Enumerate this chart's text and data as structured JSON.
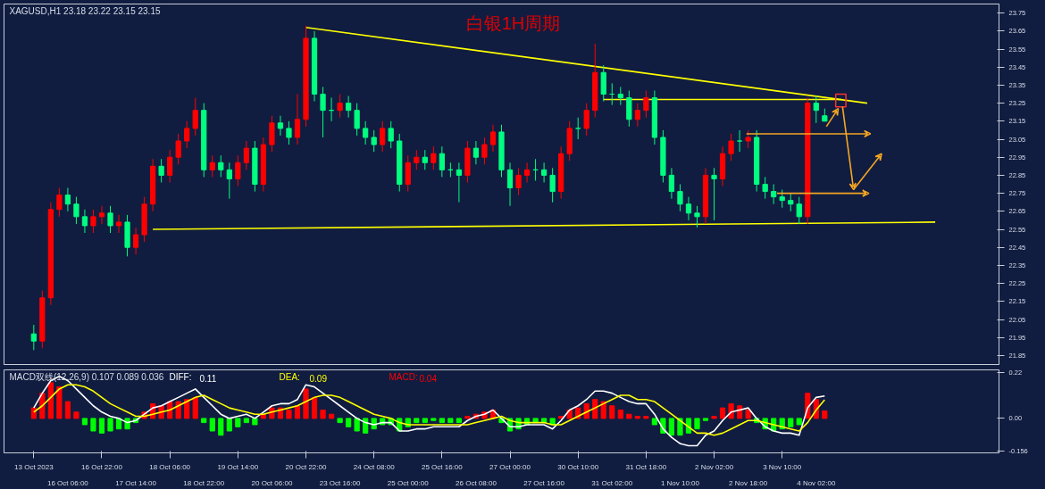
{
  "chart_data": [
    {
      "type": "candlestick",
      "title": "白银1H周期",
      "subtitle": "XAGUSD,H1  23.18 23.22 23.15 23.15",
      "categories": [
        null,
        null,
        null,
        null,
        null,
        null,
        null,
        null,
        null,
        null,
        null,
        null,
        null,
        null,
        null,
        null,
        null,
        null,
        null,
        null,
        null,
        null,
        null,
        null,
        null,
        null,
        null,
        null,
        null,
        null,
        null,
        null,
        null,
        null,
        null,
        null,
        null,
        null,
        null,
        null,
        null,
        null,
        null,
        null,
        null,
        null,
        null,
        null,
        null,
        null,
        null,
        null,
        null,
        null,
        null,
        null,
        null,
        null,
        null,
        null,
        null,
        null,
        null,
        null,
        null,
        null,
        null,
        null,
        null,
        null,
        null,
        null,
        null,
        null,
        null,
        null,
        null,
        null,
        null,
        null,
        null,
        null,
        null,
        null,
        null,
        null,
        null,
        null,
        null,
        null,
        null,
        null,
        null,
        null,
        null,
        null,
        null,
        null,
        null,
        null,
        null,
        null,
        null,
        null,
        null,
        null,
        null,
        null,
        null,
        null,
        null,
        null,
        null,
        null
      ],
      "ohlc": [
        [
          21.97,
          22.02,
          21.88,
          21.93
        ],
        [
          21.93,
          22.21,
          21.89,
          22.17
        ],
        [
          22.17,
          22.7,
          22.13,
          22.66
        ],
        [
          22.66,
          22.78,
          22.62,
          22.74
        ],
        [
          22.74,
          22.78,
          22.65,
          22.69
        ],
        [
          22.69,
          22.73,
          22.58,
          22.62
        ],
        [
          22.62,
          22.66,
          22.53,
          22.57
        ],
        [
          22.57,
          22.66,
          22.53,
          22.62
        ],
        [
          22.62,
          22.68,
          22.58,
          22.64
        ],
        [
          22.64,
          22.68,
          22.53,
          22.57
        ],
        [
          22.57,
          22.63,
          22.53,
          22.59
        ],
        [
          22.59,
          22.63,
          22.4,
          22.45
        ],
        [
          22.45,
          22.56,
          22.41,
          22.52
        ],
        [
          22.52,
          22.73,
          22.48,
          22.69
        ],
        [
          22.69,
          22.94,
          22.65,
          22.9
        ],
        [
          22.9,
          22.94,
          22.81,
          22.85
        ],
        [
          22.85,
          22.99,
          22.81,
          22.95
        ],
        [
          22.95,
          23.08,
          22.91,
          23.04
        ],
        [
          23.04,
          23.15,
          23.0,
          23.11
        ],
        [
          23.11,
          23.28,
          23.07,
          23.21
        ],
        [
          23.21,
          23.25,
          22.84,
          22.88
        ],
        [
          22.88,
          22.96,
          22.84,
          22.92
        ],
        [
          22.92,
          22.96,
          22.84,
          22.88
        ],
        [
          22.88,
          22.92,
          22.72,
          22.83
        ],
        [
          22.83,
          22.96,
          22.79,
          22.92
        ],
        [
          22.92,
          23.04,
          22.88,
          23.0
        ],
        [
          23.0,
          23.04,
          22.76,
          22.8
        ],
        [
          22.8,
          23.06,
          22.76,
          23.02
        ],
        [
          23.02,
          23.18,
          22.98,
          23.14
        ],
        [
          23.14,
          23.18,
          23.07,
          23.11
        ],
        [
          23.11,
          23.15,
          23.02,
          23.06
        ],
        [
          23.06,
          23.3,
          23.02,
          23.16
        ],
        [
          23.16,
          23.68,
          23.12,
          23.61
        ],
        [
          23.61,
          23.65,
          23.26,
          23.3
        ],
        [
          23.3,
          23.34,
          23.06,
          23.21
        ],
        [
          23.21,
          23.28,
          23.15,
          23.21
        ],
        [
          23.21,
          23.3,
          23.17,
          23.25
        ],
        [
          23.25,
          23.29,
          23.17,
          23.21
        ],
        [
          23.21,
          23.25,
          23.07,
          23.11
        ],
        [
          23.11,
          23.15,
          23.02,
          23.06
        ],
        [
          23.06,
          23.1,
          22.98,
          23.02
        ],
        [
          23.02,
          23.15,
          22.98,
          23.11
        ],
        [
          23.11,
          23.15,
          23.0,
          23.04
        ],
        [
          23.04,
          23.08,
          22.76,
          22.8
        ],
        [
          22.8,
          22.96,
          22.76,
          22.92
        ],
        [
          22.92,
          22.99,
          22.88,
          22.95
        ],
        [
          22.95,
          22.99,
          22.88,
          22.92
        ],
        [
          22.92,
          23.01,
          22.88,
          22.97
        ],
        [
          22.97,
          23.01,
          22.84,
          22.88
        ],
        [
          22.88,
          22.92,
          22.84,
          22.88
        ],
        [
          22.88,
          22.92,
          22.7,
          22.85
        ],
        [
          22.85,
          23.04,
          22.81,
          23.0
        ],
        [
          23.0,
          23.04,
          22.91,
          22.95
        ],
        [
          22.95,
          23.06,
          22.91,
          23.02
        ],
        [
          23.02,
          23.13,
          22.98,
          23.09
        ],
        [
          23.09,
          23.13,
          22.84,
          22.88
        ],
        [
          22.88,
          22.92,
          22.68,
          22.78
        ],
        [
          22.78,
          22.89,
          22.74,
          22.85
        ],
        [
          22.85,
          22.92,
          22.81,
          22.88
        ],
        [
          22.88,
          22.94,
          22.82,
          22.88
        ],
        [
          22.88,
          22.92,
          22.81,
          22.85
        ],
        [
          22.85,
          22.89,
          22.7,
          22.76
        ],
        [
          22.76,
          23.01,
          22.72,
          22.97
        ],
        [
          22.97,
          23.15,
          22.93,
          23.11
        ],
        [
          23.11,
          23.17,
          23.05,
          23.11
        ],
        [
          23.11,
          23.25,
          23.07,
          23.21
        ],
        [
          23.21,
          23.58,
          23.17,
          23.42
        ],
        [
          23.42,
          23.46,
          23.26,
          23.3
        ],
        [
          23.3,
          23.36,
          23.24,
          23.3
        ],
        [
          23.3,
          23.34,
          23.24,
          23.28
        ],
        [
          23.28,
          23.32,
          23.12,
          23.16
        ],
        [
          23.16,
          23.25,
          23.12,
          23.21
        ],
        [
          23.21,
          23.32,
          23.17,
          23.28
        ],
        [
          23.28,
          23.32,
          23.02,
          23.06
        ],
        [
          23.06,
          23.1,
          22.81,
          22.85
        ],
        [
          22.85,
          22.89,
          22.72,
          22.76
        ],
        [
          22.76,
          22.8,
          22.65,
          22.69
        ],
        [
          22.69,
          22.73,
          22.6,
          22.64
        ],
        [
          22.64,
          22.68,
          22.56,
          22.62
        ],
        [
          22.62,
          22.89,
          22.58,
          22.85
        ],
        [
          22.85,
          22.89,
          22.6,
          22.83
        ],
        [
          22.83,
          23.01,
          22.79,
          22.97
        ],
        [
          22.97,
          23.08,
          22.93,
          23.04
        ],
        [
          23.04,
          23.1,
          22.98,
          23.04
        ],
        [
          23.04,
          23.1,
          23.0,
          23.06
        ],
        [
          23.06,
          23.1,
          22.76,
          22.8
        ],
        [
          22.8,
          22.84,
          22.72,
          22.76
        ],
        [
          22.76,
          22.8,
          22.69,
          22.73
        ],
        [
          22.73,
          22.77,
          22.67,
          22.71
        ],
        [
          22.71,
          22.75,
          22.65,
          22.69
        ],
        [
          22.69,
          22.73,
          22.58,
          22.62
        ],
        [
          22.62,
          23.28,
          22.58,
          23.25
        ],
        [
          23.25,
          23.29,
          23.14,
          23.21
        ],
        [
          23.18,
          23.22,
          23.15,
          23.15
        ],
        null,
        null,
        null,
        null,
        null,
        null,
        null,
        null,
        null,
        null,
        null,
        null,
        null,
        null,
        null,
        null,
        null,
        null,
        null,
        null
      ],
      "colors": [
        "#00ff80",
        "#ff0000",
        "#ff0000",
        "#ff0000",
        "#00ff80",
        "#00ff80",
        "#00ff80",
        "#ff0000",
        "#ff0000",
        "#00ff80",
        "#ff0000",
        "#00ff80",
        "#ff0000",
        "#ff0000",
        "#ff0000",
        "#00ff80",
        "#ff0000",
        "#ff0000",
        "#ff0000",
        "#ff0000",
        "#00ff80",
        "#ff0000",
        "#00ff80",
        "#00ff80",
        "#ff0000",
        "#ff0000",
        "#00ff80",
        "#ff0000",
        "#ff0000",
        "#00ff80",
        "#00ff80",
        "#ff0000",
        "#ff0000",
        "#00ff80",
        "#00ff80",
        "#00ff80",
        "#ff0000",
        "#00ff80",
        "#00ff80",
        "#00ff80",
        "#00ff80",
        "#ff0000",
        "#00ff80",
        "#00ff80",
        "#ff0000",
        "#ff0000",
        "#00ff80",
        "#ff0000",
        "#00ff80",
        "#00ff80",
        "#00ff80",
        "#ff0000",
        "#00ff80",
        "#ff0000",
        "#ff0000",
        "#00ff80",
        "#00ff80",
        "#ff0000",
        "#ff0000",
        "#00ff80",
        "#00ff80",
        "#00ff80",
        "#ff0000",
        "#ff0000",
        "#00ff80",
        "#ff0000",
        "#ff0000",
        "#00ff80",
        "#00ff80",
        "#00ff80",
        "#00ff80",
        "#ff0000",
        "#ff0000",
        "#00ff80",
        "#00ff80",
        "#00ff80",
        "#00ff80",
        "#00ff80",
        "#00ff80",
        "#ff0000",
        "#00ff80",
        "#ff0000",
        "#ff0000",
        "#00ff80",
        "#ff0000",
        "#00ff80",
        "#00ff80",
        "#00ff80",
        "#00ff80",
        "#00ff80",
        "#00ff80",
        "#ff0000",
        "#00ff80",
        "#00ff80",
        null,
        null,
        null,
        null,
        null,
        null,
        null,
        null,
        null,
        null,
        null,
        null,
        null,
        null,
        null,
        null,
        null,
        null,
        null,
        null
      ],
      "series": [
        {
          "type": "line",
          "color": "#ffff00",
          "values": [
            null,
            null,
            null,
            null,
            null,
            null,
            null,
            null,
            null,
            null,
            null,
            null,
            null,
            null,
            null,
            null,
            null,
            null,
            null,
            null,
            null,
            null,
            null,
            null,
            null,
            null,
            null,
            null,
            null,
            null,
            null,
            null,
            23.67,
            null,
            null,
            null,
            null,
            null,
            null,
            null,
            null,
            null,
            null,
            null,
            null,
            null,
            null,
            null,
            null,
            null,
            null,
            null,
            null,
            null,
            null,
            null,
            null,
            null,
            null,
            null,
            null,
            null,
            null,
            null,
            null,
            null,
            null,
            null,
            null,
            null,
            null,
            null,
            null,
            null,
            null,
            null,
            null,
            null,
            null,
            null,
            null,
            null,
            null,
            null,
            null,
            null,
            null,
            null,
            null,
            null,
            null,
            null,
            null,
            null,
            null,
            null,
            null,
            null,
            23.25,
            null,
            null,
            null,
            null,
            null,
            null,
            null,
            null,
            null,
            null,
            null,
            null,
            null,
            null,
            null
          ]
        },
        {
          "type": "line",
          "color": "#ffff00",
          "values": [
            null,
            null,
            null,
            null,
            null,
            null,
            null,
            null,
            null,
            null,
            null,
            null,
            null,
            null,
            22.55,
            null,
            null,
            null,
            null,
            null,
            null,
            null,
            null,
            null,
            null,
            null,
            null,
            null,
            null,
            null,
            null,
            null,
            null,
            null,
            null,
            null,
            null,
            null,
            null,
            null,
            null,
            null,
            null,
            null,
            null,
            null,
            null,
            null,
            null,
            null,
            null,
            null,
            null,
            null,
            null,
            null,
            null,
            null,
            null,
            null,
            null,
            null,
            null,
            null,
            null,
            null,
            null,
            null,
            null,
            null,
            null,
            null,
            null,
            null,
            null,
            null,
            null,
            null,
            null,
            null,
            null,
            null,
            null,
            null,
            null,
            null,
            null,
            null,
            null,
            null,
            null,
            null,
            null,
            null,
            null,
            null,
            null,
            null,
            null,
            null,
            null,
            null,
            null,
            null,
            null,
            null,
            22.59,
            null,
            null,
            null,
            null,
            null,
            null,
            null
          ]
        },
        {
          "type": "line",
          "color": "#ffff00",
          "values": [
            null,
            null,
            null,
            null,
            null,
            null,
            null,
            null,
            null,
            null,
            null,
            null,
            null,
            null,
            null,
            null,
            null,
            null,
            null,
            null,
            null,
            null,
            null,
            null,
            null,
            null,
            null,
            null,
            null,
            null,
            null,
            null,
            null,
            null,
            null,
            null,
            null,
            null,
            null,
            null,
            null,
            null,
            null,
            null,
            null,
            null,
            null,
            null,
            null,
            null,
            null,
            null,
            null,
            null,
            null,
            null,
            null,
            null,
            null,
            null,
            null,
            null,
            null,
            null,
            null,
            null,
            null,
            23.27,
            null,
            null,
            null,
            null,
            null,
            null,
            null,
            null,
            null,
            null,
            null,
            null,
            null,
            null,
            null,
            null,
            null,
            null,
            null,
            null,
            null,
            null,
            null,
            null,
            null,
            null,
            null,
            23.27,
            null,
            null,
            null,
            null,
            null,
            null,
            null,
            null,
            null,
            null,
            null,
            null,
            null,
            null,
            null,
            null,
            null,
            null
          ]
        }
      ],
      "ylim": [
        21.8,
        23.8
      ],
      "yticks": [
        {
          "value": 21.85,
          "label": "21.85"
        },
        {
          "value": 21.95,
          "label": "21.95"
        },
        {
          "value": 22.05,
          "label": "22.05"
        },
        {
          "value": 22.15,
          "label": "22.15"
        },
        {
          "value": 22.25,
          "label": "22.25"
        },
        {
          "value": 22.35,
          "label": "22.35"
        },
        {
          "value": 22.45,
          "label": "22.45"
        },
        {
          "value": 22.55,
          "label": "22.55"
        },
        {
          "value": 22.65,
          "label": "22.65"
        },
        {
          "value": 22.75,
          "label": "22.75"
        },
        {
          "value": 22.85,
          "label": "22.85"
        },
        {
          "value": 22.95,
          "label": "22.95"
        },
        {
          "value": 23.05,
          "label": "23.05"
        },
        {
          "value": 23.15,
          "label": "23.15"
        },
        {
          "value": 23.25,
          "label": "23.25"
        },
        {
          "value": 23.35,
          "label": "23.35"
        },
        {
          "value": 23.45,
          "label": "23.45"
        },
        {
          "value": 23.55,
          "label": "23.55"
        },
        {
          "value": 23.65,
          "label": "23.65"
        },
        {
          "value": 23.75,
          "label": "23.75"
        }
      ],
      "grid": false
    },
    {
      "type": "bar",
      "subtitle": "MACD双线(12,26,9) 0.107 0.089 0.036",
      "categories": [
        "13 Oct 2023",
        null,
        null,
        null,
        "16 Oct 06:00",
        null,
        null,
        null,
        "16 Oct 22:00",
        null,
        null,
        null,
        "17 Oct 14:00",
        null,
        null,
        null,
        "18 Oct 06:00",
        null,
        null,
        null,
        "18 Oct 22:00",
        null,
        null,
        null,
        "19 Oct 14:00",
        null,
        null,
        null,
        "20 Oct 06:00",
        null,
        null,
        null,
        "20 Oct 22:00",
        null,
        null,
        null,
        "23 Oct 16:00",
        null,
        null,
        null,
        "24 Oct 08:00",
        null,
        null,
        null,
        "25 Oct 00:00",
        null,
        null,
        null,
        "25 Oct 16:00",
        null,
        null,
        null,
        "26 Oct 08:00",
        null,
        null,
        null,
        "27 Oct 00:00",
        null,
        null,
        null,
        "27 Oct 16:00",
        null,
        null,
        null,
        "30 Oct 10:00",
        null,
        null,
        null,
        "31 Oct 02:00",
        null,
        null,
        null,
        "31 Oct 18:00",
        null,
        null,
        null,
        "1 Nov 10:00",
        null,
        null,
        null,
        "2 Nov 02:00",
        null,
        null,
        null,
        "2 Nov 18:00",
        null,
        null,
        null,
        "3 Nov 10:00",
        null,
        null,
        null,
        "4 Nov 02:00",
        null,
        null,
        null,
        null,
        null,
        null,
        null,
        null,
        null,
        null,
        null,
        null,
        null,
        null,
        null,
        null,
        null,
        null,
        null,
        null,
        null
      ],
      "series": [
        {
          "type": "line",
          "name": "DIFF:",
          "color": "#ffffff",
          "values": [
            0.05,
            0.12,
            0.18,
            0.2,
            0.18,
            0.14,
            0.1,
            0.06,
            0.03,
            0.01,
            0.0,
            -0.02,
            -0.01,
            0.02,
            0.05,
            0.06,
            0.08,
            0.1,
            0.12,
            0.14,
            0.1,
            0.06,
            0.02,
            0.0,
            0.01,
            0.02,
            0.0,
            0.03,
            0.06,
            0.07,
            0.07,
            0.09,
            0.16,
            0.15,
            0.12,
            0.09,
            0.06,
            0.03,
            0.0,
            -0.02,
            -0.03,
            -0.02,
            -0.02,
            -0.06,
            -0.06,
            -0.05,
            -0.05,
            -0.04,
            -0.04,
            -0.04,
            -0.04,
            -0.01,
            0.01,
            0.02,
            0.04,
            0.0,
            -0.04,
            -0.04,
            -0.03,
            -0.03,
            -0.03,
            -0.05,
            -0.01,
            0.04,
            0.06,
            0.09,
            0.13,
            0.13,
            0.12,
            0.1,
            0.08,
            0.07,
            0.07,
            0.02,
            -0.05,
            -0.09,
            -0.12,
            -0.13,
            -0.13,
            -0.08,
            -0.06,
            -0.01,
            0.03,
            0.04,
            0.05,
            0.0,
            -0.04,
            -0.06,
            -0.07,
            -0.07,
            -0.08,
            0.05,
            0.1,
            0.107,
            null,
            null,
            null,
            null,
            null,
            null,
            null,
            null,
            null,
            null,
            null,
            null,
            null,
            null,
            null,
            null,
            null,
            null,
            null,
            null
          ]
        },
        {
          "type": "line",
          "name": "DEA:",
          "color": "#ffff00",
          "values": [
            0.03,
            0.06,
            0.1,
            0.14,
            0.16,
            0.16,
            0.15,
            0.13,
            0.1,
            0.07,
            0.05,
            0.03,
            0.01,
            0.01,
            0.02,
            0.03,
            0.04,
            0.06,
            0.08,
            0.1,
            0.11,
            0.09,
            0.07,
            0.05,
            0.04,
            0.03,
            0.02,
            0.02,
            0.03,
            0.04,
            0.05,
            0.06,
            0.08,
            0.1,
            0.11,
            0.11,
            0.1,
            0.08,
            0.06,
            0.04,
            0.02,
            0.01,
            0.0,
            -0.02,
            -0.03,
            -0.03,
            -0.03,
            -0.03,
            -0.03,
            -0.03,
            -0.03,
            -0.03,
            -0.02,
            -0.01,
            0.0,
            0.01,
            -0.01,
            -0.02,
            -0.02,
            -0.02,
            -0.02,
            -0.03,
            -0.03,
            -0.01,
            0.01,
            0.03,
            0.05,
            0.07,
            0.09,
            0.11,
            0.11,
            0.09,
            0.09,
            0.08,
            0.05,
            0.02,
            -0.01,
            -0.04,
            -0.07,
            -0.07,
            -0.08,
            -0.07,
            -0.05,
            -0.03,
            -0.01,
            -0.01,
            -0.02,
            -0.03,
            -0.04,
            -0.05,
            -0.06,
            -0.02,
            0.04,
            0.089,
            null,
            null,
            null,
            null,
            null,
            null,
            null,
            null,
            null,
            null,
            null,
            null,
            null,
            null,
            null,
            null,
            null,
            null,
            null,
            null
          ]
        },
        {
          "type": "bar",
          "name": "MACD:",
          "color": "#ff0000",
          "values": [
            0.05,
            0.12,
            0.17,
            0.15,
            0.08,
            0.03,
            -0.03,
            -0.06,
            -0.07,
            -0.06,
            -0.05,
            -0.05,
            -0.02,
            0.03,
            0.07,
            0.06,
            0.08,
            0.08,
            0.09,
            0.1,
            -0.02,
            -0.06,
            -0.08,
            -0.06,
            -0.04,
            -0.02,
            -0.03,
            0.02,
            0.05,
            0.05,
            0.04,
            0.06,
            0.14,
            0.1,
            0.04,
            0.02,
            -0.02,
            -0.04,
            -0.06,
            -0.07,
            -0.05,
            -0.03,
            -0.03,
            -0.06,
            -0.04,
            -0.02,
            -0.02,
            -0.01,
            -0.02,
            -0.02,
            -0.02,
            0.01,
            0.02,
            0.03,
            0.04,
            -0.02,
            -0.06,
            -0.05,
            -0.03,
            -0.02,
            -0.02,
            -0.03,
            0.01,
            0.04,
            0.05,
            0.07,
            0.09,
            0.08,
            0.06,
            0.04,
            0.02,
            0.01,
            0.01,
            -0.03,
            -0.07,
            -0.08,
            -0.08,
            -0.07,
            -0.05,
            -0.01,
            0.01,
            0.05,
            0.07,
            0.06,
            0.04,
            -0.02,
            -0.05,
            -0.06,
            -0.05,
            -0.04,
            -0.03,
            0.12,
            0.09,
            0.036,
            null,
            null,
            null,
            null,
            null,
            null,
            null,
            null,
            null,
            null,
            null,
            null,
            null,
            null,
            null,
            null,
            null,
            null,
            null,
            null
          ],
          "colors": [
            "#ff0000",
            "#ff0000",
            "#ff0000",
            "#ff0000",
            "#ff0000",
            "#ff0000",
            "#00ff00",
            "#00ff00",
            "#00ff00",
            "#00ff00",
            "#00ff00",
            "#00ff00",
            "#00ff00",
            "#ff0000",
            "#ff0000",
            "#ff0000",
            "#ff0000",
            "#ff0000",
            "#ff0000",
            "#ff0000",
            "#00ff00",
            "#00ff00",
            "#00ff00",
            "#00ff00",
            "#00ff00",
            "#00ff00",
            "#00ff00",
            "#ff0000",
            "#ff0000",
            "#ff0000",
            "#ff0000",
            "#ff0000",
            "#ff0000",
            "#ff0000",
            "#ff0000",
            "#ff0000",
            "#00ff00",
            "#00ff00",
            "#00ff00",
            "#00ff00",
            "#00ff00",
            "#00ff00",
            "#00ff00",
            "#00ff00",
            "#00ff00",
            "#00ff00",
            "#00ff00",
            "#00ff00",
            "#00ff00",
            "#00ff00",
            "#00ff00",
            "#ff0000",
            "#ff0000",
            "#ff0000",
            "#ff0000",
            "#00ff00",
            "#00ff00",
            "#00ff00",
            "#00ff00",
            "#00ff00",
            "#00ff00",
            "#00ff00",
            "#ff0000",
            "#ff0000",
            "#ff0000",
            "#ff0000",
            "#ff0000",
            "#ff0000",
            "#ff0000",
            "#ff0000",
            "#ff0000",
            "#ff0000",
            "#ff0000",
            "#00ff00",
            "#00ff00",
            "#00ff00",
            "#00ff00",
            "#00ff00",
            "#00ff00",
            "#00ff00",
            "#ff0000",
            "#ff0000",
            "#ff0000",
            "#ff0000",
            "#ff0000",
            "#00ff00",
            "#00ff00",
            "#00ff00",
            "#00ff00",
            "#00ff00",
            "#00ff00",
            "#ff0000",
            "#ff0000",
            "#ff0000",
            null,
            null,
            null,
            null,
            null,
            null,
            null,
            null,
            null,
            null,
            null,
            null,
            null,
            null,
            null,
            null,
            null,
            null,
            null,
            null
          ]
        }
      ],
      "annotations": [
        "0.11",
        "0.09",
        "0.04"
      ],
      "ylim": [
        -0.164,
        0.231
      ],
      "yticks": [
        -0.156,
        {
          "value": 0,
          "label": "0.00"
        },
        0.22
      ]
    }
  ]
}
